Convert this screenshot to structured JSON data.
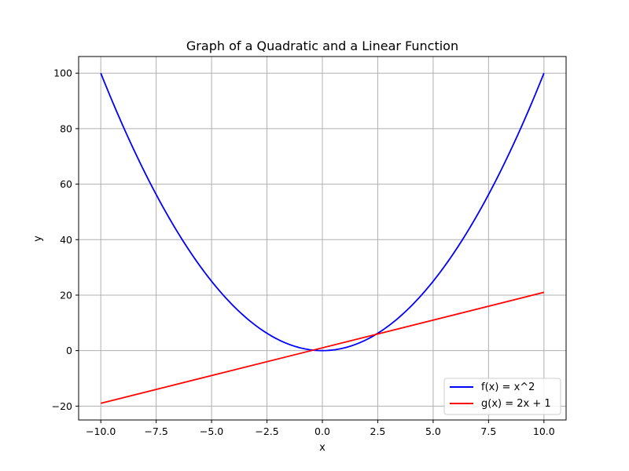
{
  "chart_data": {
    "type": "line",
    "title": "Graph of a Quadratic and a Linear Function",
    "xlabel": "x",
    "ylabel": "y",
    "xlim": [
      -11,
      11
    ],
    "ylim": [
      -25,
      106
    ],
    "xticks": [
      -10.0,
      -7.5,
      -5.0,
      -2.5,
      0.0,
      2.5,
      5.0,
      7.5,
      10.0
    ],
    "xtick_labels": [
      "−10.0",
      "−7.5",
      "−5.0",
      "−2.5",
      "0.0",
      "2.5",
      "5.0",
      "7.5",
      "10.0"
    ],
    "yticks": [
      -20,
      0,
      20,
      40,
      60,
      80,
      100
    ],
    "ytick_labels": [
      "−20",
      "0",
      "20",
      "40",
      "60",
      "80",
      "100"
    ],
    "grid": true,
    "legend_position": "lower-right",
    "series": [
      {
        "name": "f(x) = x^2",
        "color": "#0000ff",
        "x": [
          -10,
          -9,
          -8,
          -7,
          -6,
          -5,
          -4,
          -3,
          -2,
          -1.5,
          -1,
          -0.5,
          0,
          0.5,
          1,
          1.5,
          2,
          3,
          4,
          5,
          6,
          7,
          8,
          9,
          10
        ],
        "y": [
          100,
          81,
          64,
          49,
          36,
          25,
          16,
          9,
          4,
          2.25,
          1,
          0.25,
          0,
          0.25,
          1,
          2.25,
          4,
          9,
          16,
          25,
          36,
          49,
          64,
          81,
          100
        ]
      },
      {
        "name": "g(x) = 2x + 1",
        "color": "#ff0000",
        "x": [
          -10,
          10
        ],
        "y": [
          -19,
          21
        ]
      }
    ]
  }
}
